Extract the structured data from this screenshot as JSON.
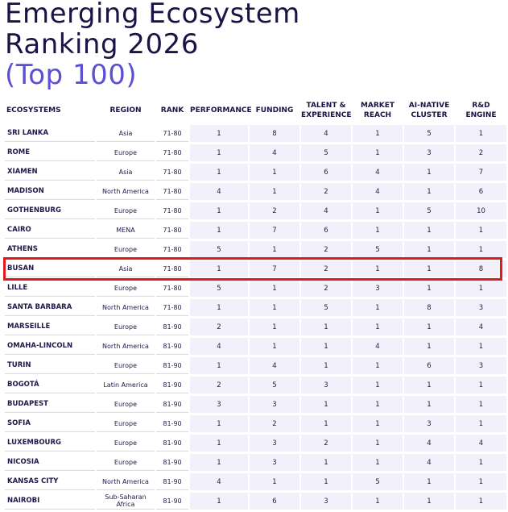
{
  "title": {
    "line1": "Emerging Ecosystem",
    "line2": "Ranking 2026",
    "line3": "(Top 100)"
  },
  "columns": {
    "ecosystems": "ECOSYSTEMS",
    "region": "REGION",
    "rank": "RANK",
    "performance": "PERFORMANCE",
    "funding": "FUNDING",
    "talent_l1": "TALENT &",
    "talent_l2": "EXPERIENCE",
    "market_l1": "MARKET",
    "market_l2": "REACH",
    "ai_l1": "AI-NATIVE",
    "ai_l2": "CLUSTER",
    "rd": "R&D ENGINE"
  },
  "highlight_color": "#e01a1a",
  "rows": [
    {
      "name": "SRI LANKA",
      "region": "Asia",
      "rank": "71-80",
      "scores": [
        "1",
        "8",
        "4",
        "1",
        "5",
        "1"
      ]
    },
    {
      "name": "ROME",
      "region": "Europe",
      "rank": "71-80",
      "scores": [
        "1",
        "4",
        "5",
        "1",
        "3",
        "2"
      ]
    },
    {
      "name": "XIAMEN",
      "region": "Asia",
      "rank": "71-80",
      "scores": [
        "1",
        "1",
        "6",
        "4",
        "1",
        "7"
      ]
    },
    {
      "name": "MADISON",
      "region": "North America",
      "rank": "71-80",
      "scores": [
        "4",
        "1",
        "2",
        "4",
        "1",
        "6"
      ]
    },
    {
      "name": "GOTHENBURG",
      "region": "Europe",
      "rank": "71-80",
      "scores": [
        "1",
        "2",
        "4",
        "1",
        "5",
        "10"
      ]
    },
    {
      "name": "CAIRO",
      "region": "MENA",
      "rank": "71-80",
      "scores": [
        "1",
        "7",
        "6",
        "1",
        "1",
        "1"
      ]
    },
    {
      "name": "ATHENS",
      "region": "Europe",
      "rank": "71-80",
      "scores": [
        "5",
        "1",
        "2",
        "5",
        "1",
        "1"
      ]
    },
    {
      "name": "BUSAN",
      "region": "Asia",
      "rank": "71-80",
      "scores": [
        "1",
        "7",
        "2",
        "1",
        "1",
        "8"
      ]
    },
    {
      "name": "LILLE",
      "region": "Europe",
      "rank": "71-80",
      "scores": [
        "5",
        "1",
        "2",
        "3",
        "1",
        "1"
      ]
    },
    {
      "name": "SANTA BARBARA",
      "region": "North America",
      "rank": "71-80",
      "scores": [
        "1",
        "1",
        "5",
        "1",
        "8",
        "3"
      ]
    },
    {
      "name": "MARSEILLE",
      "region": "Europe",
      "rank": "81-90",
      "scores": [
        "2",
        "1",
        "1",
        "1",
        "1",
        "4"
      ]
    },
    {
      "name": "OMAHA-LINCOLN",
      "region": "North America",
      "rank": "81-90",
      "scores": [
        "4",
        "1",
        "1",
        "4",
        "1",
        "1"
      ]
    },
    {
      "name": "TURIN",
      "region": "Europe",
      "rank": "81-90",
      "scores": [
        "1",
        "4",
        "1",
        "1",
        "6",
        "3"
      ]
    },
    {
      "name": "BOGOTÁ",
      "region": "Latin America",
      "rank": "81-90",
      "scores": [
        "2",
        "5",
        "3",
        "1",
        "1",
        "1"
      ]
    },
    {
      "name": "BUDAPEST",
      "region": "Europe",
      "rank": "81-90",
      "scores": [
        "3",
        "3",
        "1",
        "1",
        "1",
        "1"
      ]
    },
    {
      "name": "SOFIA",
      "region": "Europe",
      "rank": "81-90",
      "scores": [
        "1",
        "2",
        "1",
        "1",
        "3",
        "1"
      ]
    },
    {
      "name": "LUXEMBOURG",
      "region": "Europe",
      "rank": "81-90",
      "scores": [
        "1",
        "3",
        "2",
        "1",
        "4",
        "4"
      ]
    },
    {
      "name": "NICOSIA",
      "region": "Europe",
      "rank": "81-90",
      "scores": [
        "1",
        "3",
        "1",
        "1",
        "4",
        "1"
      ]
    },
    {
      "name": "KANSAS CITY",
      "region": "North America",
      "rank": "81-90",
      "scores": [
        "4",
        "1",
        "1",
        "5",
        "1",
        "1"
      ]
    },
    {
      "name": "NAIROBI",
      "region": "Sub-Saharan Africa",
      "rank": "81-90",
      "scores": [
        "1",
        "6",
        "3",
        "1",
        "1",
        "1"
      ]
    }
  ]
}
